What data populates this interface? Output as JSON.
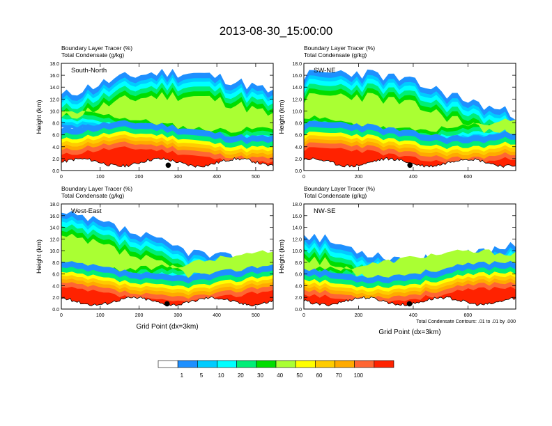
{
  "title": "2013-08-30_15:00:00",
  "chart_data": [
    {
      "type": "heatmap",
      "panel_label": "South-North",
      "subtitle_lines": [
        "Boundary Layer Tracer   (%)",
        "Total Condensate   (g/kg)"
      ],
      "ylabel": "Height (km)",
      "xlabel": "",
      "xlim": [
        0,
        545
      ],
      "ylim": [
        0,
        18
      ],
      "xticks": [
        0,
        100,
        200,
        300,
        400,
        500
      ],
      "yticks": [
        "0.0",
        "2.0",
        "4.0",
        "6.0",
        "8.0",
        "10.0",
        "12.0",
        "14.0",
        "16.0",
        "18.0"
      ],
      "marker_x": 275,
      "profile_seed": 11
    },
    {
      "type": "heatmap",
      "panel_label": "SW-NE",
      "subtitle_lines": [
        "Boundary Layer Tracer   (%)",
        "Total Condensate   (g/kg)"
      ],
      "ylabel": "Height (km)",
      "xlabel": "",
      "xlim": [
        0,
        775
      ],
      "ylim": [
        0,
        18
      ],
      "xticks": [
        0,
        200,
        400,
        600
      ],
      "yticks": [
        "0.0",
        "2.0",
        "4.0",
        "6.0",
        "8.0",
        "10.0",
        "12.0",
        "14.0",
        "16.0",
        "18.0"
      ],
      "marker_x": 388,
      "profile_seed": 23
    },
    {
      "type": "heatmap",
      "panel_label": "West-East",
      "subtitle_lines": [
        "Boundary Layer Tracer   (%)",
        "Total Condensate   (g/kg)"
      ],
      "ylabel": "Height (km)",
      "xlabel": "Grid Point (dx=3km)",
      "xlim": [
        0,
        545
      ],
      "ylim": [
        0,
        18
      ],
      "xticks": [
        0,
        100,
        200,
        300,
        400,
        500
      ],
      "yticks": [
        "0.0",
        "2.0",
        "4.0",
        "6.0",
        "8.0",
        "10.0",
        "12.0",
        "14.0",
        "16.0",
        "18.0"
      ],
      "marker_x": 272,
      "profile_seed": 37
    },
    {
      "type": "heatmap",
      "panel_label": "NW-SE",
      "subtitle_lines": [
        "Boundary Layer Tracer   (%)",
        "Total Condensate   (g/kg)"
      ],
      "ylabel": "Height (km)",
      "xlabel": "Grid Point (dx=3km)",
      "footnote": "Total Condensate Contours: .01 to .01 by .000",
      "xlim": [
        0,
        775
      ],
      "ylim": [
        0,
        18
      ],
      "xticks": [
        0,
        200,
        400,
        600
      ],
      "yticks": [
        "0.0",
        "2.0",
        "4.0",
        "6.0",
        "8.0",
        "10.0",
        "12.0",
        "14.0",
        "16.0",
        "18.0"
      ],
      "marker_x": 386,
      "profile_seed": 53
    }
  ],
  "colorbar": {
    "labels": [
      "1",
      "5",
      "10",
      "20",
      "30",
      "40",
      "50",
      "60",
      "70",
      "100"
    ],
    "colors": [
      "#ffffff",
      "#1e90ff",
      "#00ccff",
      "#00ffff",
      "#00ee77",
      "#00dd00",
      "#aaff33",
      "#ffff00",
      "#ffcc00",
      "#ffaa00",
      "#ff6633",
      "#ff2200"
    ]
  }
}
